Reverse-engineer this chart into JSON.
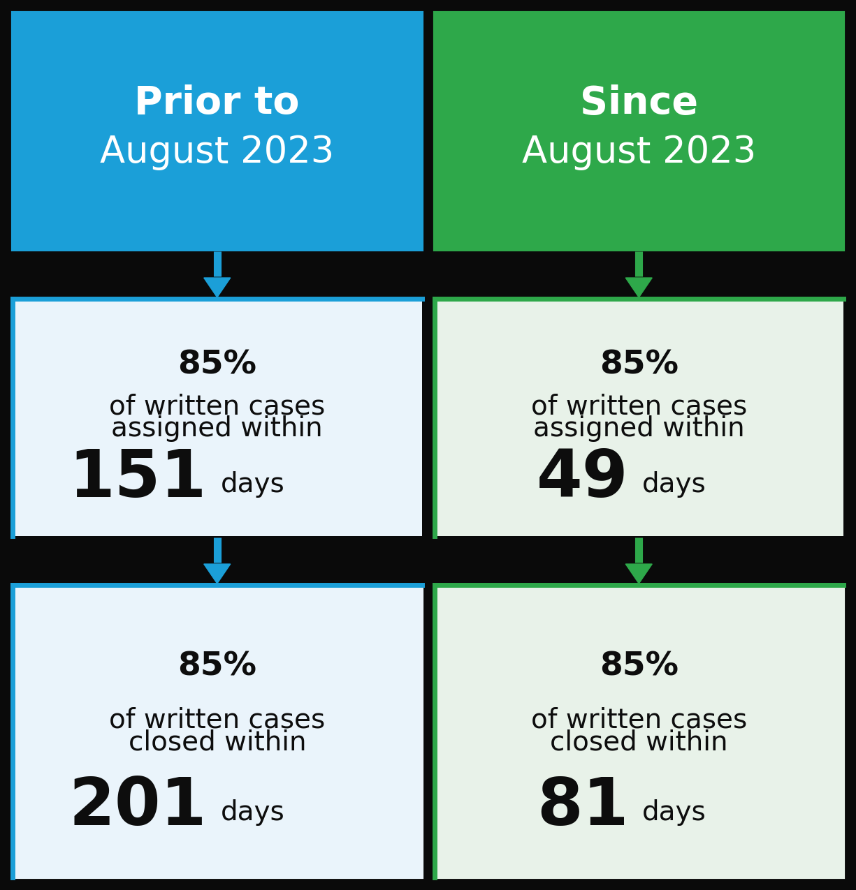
{
  "blue_color": "#1B9FD8",
  "green_color": "#2EA84A",
  "light_blue_bg": "#EAF4FB",
  "light_green_bg": "#E8F2E9",
  "black_bg": "#0A0A0A",
  "white": "#FFFFFF",
  "black_text": "#0D0D0D",
  "left_title_bold": "Prior to",
  "left_title_normal": "August 2023",
  "right_title_bold": "Since",
  "right_title_normal": "August 2023",
  "left_assign_pct": "85%",
  "left_assign_text": "of written cases\nassigned within",
  "left_assign_days": "151",
  "left_assign_days_label": "days",
  "left_close_pct": "85%",
  "left_close_text": "of written cases\nclosed within",
  "left_close_days": "201",
  "left_close_days_label": "days",
  "right_assign_pct": "85%",
  "right_assign_text": "of written cases\nassigned within",
  "right_assign_days": "49",
  "right_assign_days_label": "days",
  "right_close_pct": "85%",
  "right_close_text": "of written cases\nclosed within",
  "right_close_days": "81",
  "right_close_days_label": "days"
}
